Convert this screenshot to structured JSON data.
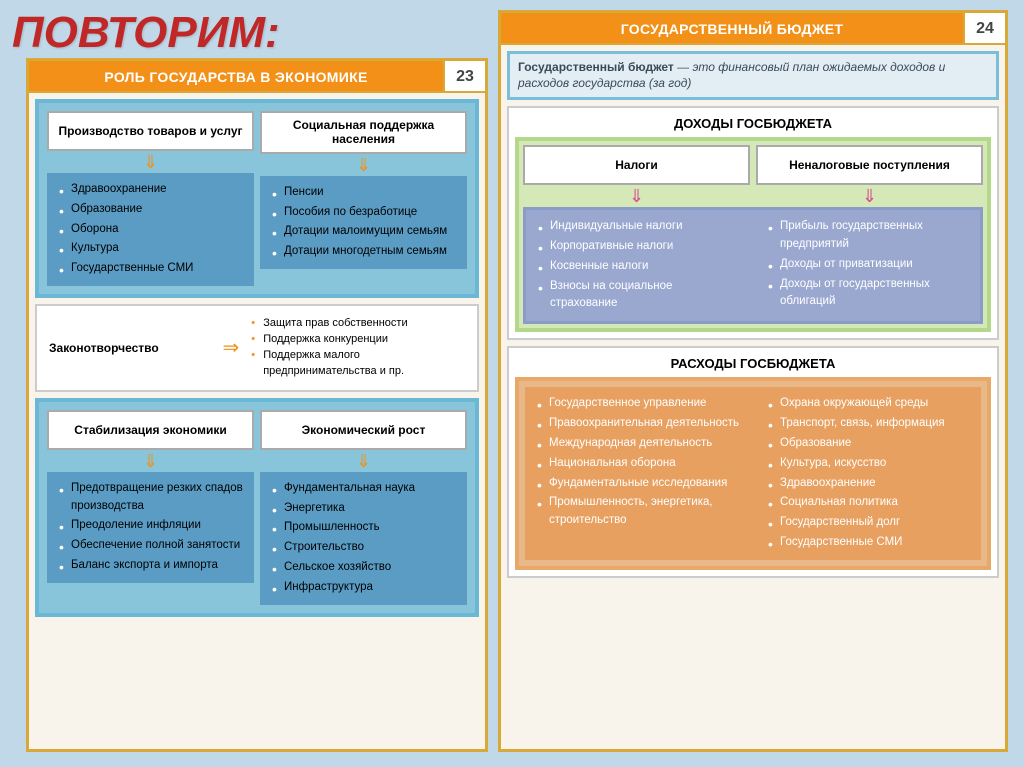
{
  "title_text": "ПОВТОРИМ:",
  "title_color": "#c02828",
  "left": {
    "header": "РОЛЬ ГОСУДАРСТВА В ЭКОНОМИКЕ",
    "number": "23",
    "top_heads": [
      "Производство товаров и услуг",
      "Социальная поддержка населения"
    ],
    "top_left_list": [
      "Здравоохранение",
      "Образование",
      "Оборона",
      "Культура",
      "Государственные СМИ"
    ],
    "top_right_list": [
      "Пенсии",
      "Пособия по безработице",
      "Дотации малоимущим семьям",
      "Дотации многодетным семьям"
    ],
    "law_label": "Законотворчество",
    "law_list": [
      "Защита прав собственности",
      "Поддержка конкуренции",
      "Поддержка малого предпринимательства и пр."
    ],
    "bot_heads": [
      "Стабилизация экономики",
      "Экономический рост"
    ],
    "bot_left_list": [
      "Предотвращение резких спадов производства",
      "Преодоление инфляции",
      "Обеспечение полной занятости",
      "Баланс экспорта и импорта"
    ],
    "bot_right_list": [
      "Фундаментальная наука",
      "Энергетика",
      "Промышленность",
      "Строительство",
      "Сельское хозяйство",
      "Инфраструктура"
    ]
  },
  "right": {
    "header": "ГОСУДАРСТВЕННЫЙ БЮДЖЕТ",
    "number": "24",
    "def_bold": "Государственный бюджет",
    "def_rest": " — это финансовый план ожидаемых доходов и расходов государства (за год)",
    "income_title": "ДОХОДЫ ГОСБЮДЖЕТА",
    "income_heads": [
      "Налоги",
      "Неналоговые поступления"
    ],
    "income_left": [
      "Индивидуальные налоги",
      "Корпоративные налоги",
      "Косвенные налоги",
      "Взносы на социальное страхование"
    ],
    "income_right": [
      "Прибыль государственных предприятий",
      "Доходы от приватизации",
      "Доходы от государственных облигаций"
    ],
    "expense_title": "РАСХОДЫ ГОСБЮДЖЕТА",
    "expense_left": [
      "Государственное управление",
      "Правоохранительная деятельность",
      "Международная деятельность",
      "Национальная оборона",
      "Фундаментальные исследования",
      "Промышленность, энергетика, строительство"
    ],
    "expense_right": [
      "Охрана окружающей среды",
      "Транспорт, связь, информация",
      "Образование",
      "Культура, искусство",
      "Здравоохранение",
      "Социальная политика",
      "Государственный долг",
      "Государственные СМИ"
    ]
  },
  "colors": {
    "header_bg": "#f29018",
    "border": "#d8a838",
    "blue_frame": "#6bb8d6",
    "green_frame": "#b4d88a",
    "purple": "#9aa8d0",
    "orange_frame": "#e8a868"
  }
}
